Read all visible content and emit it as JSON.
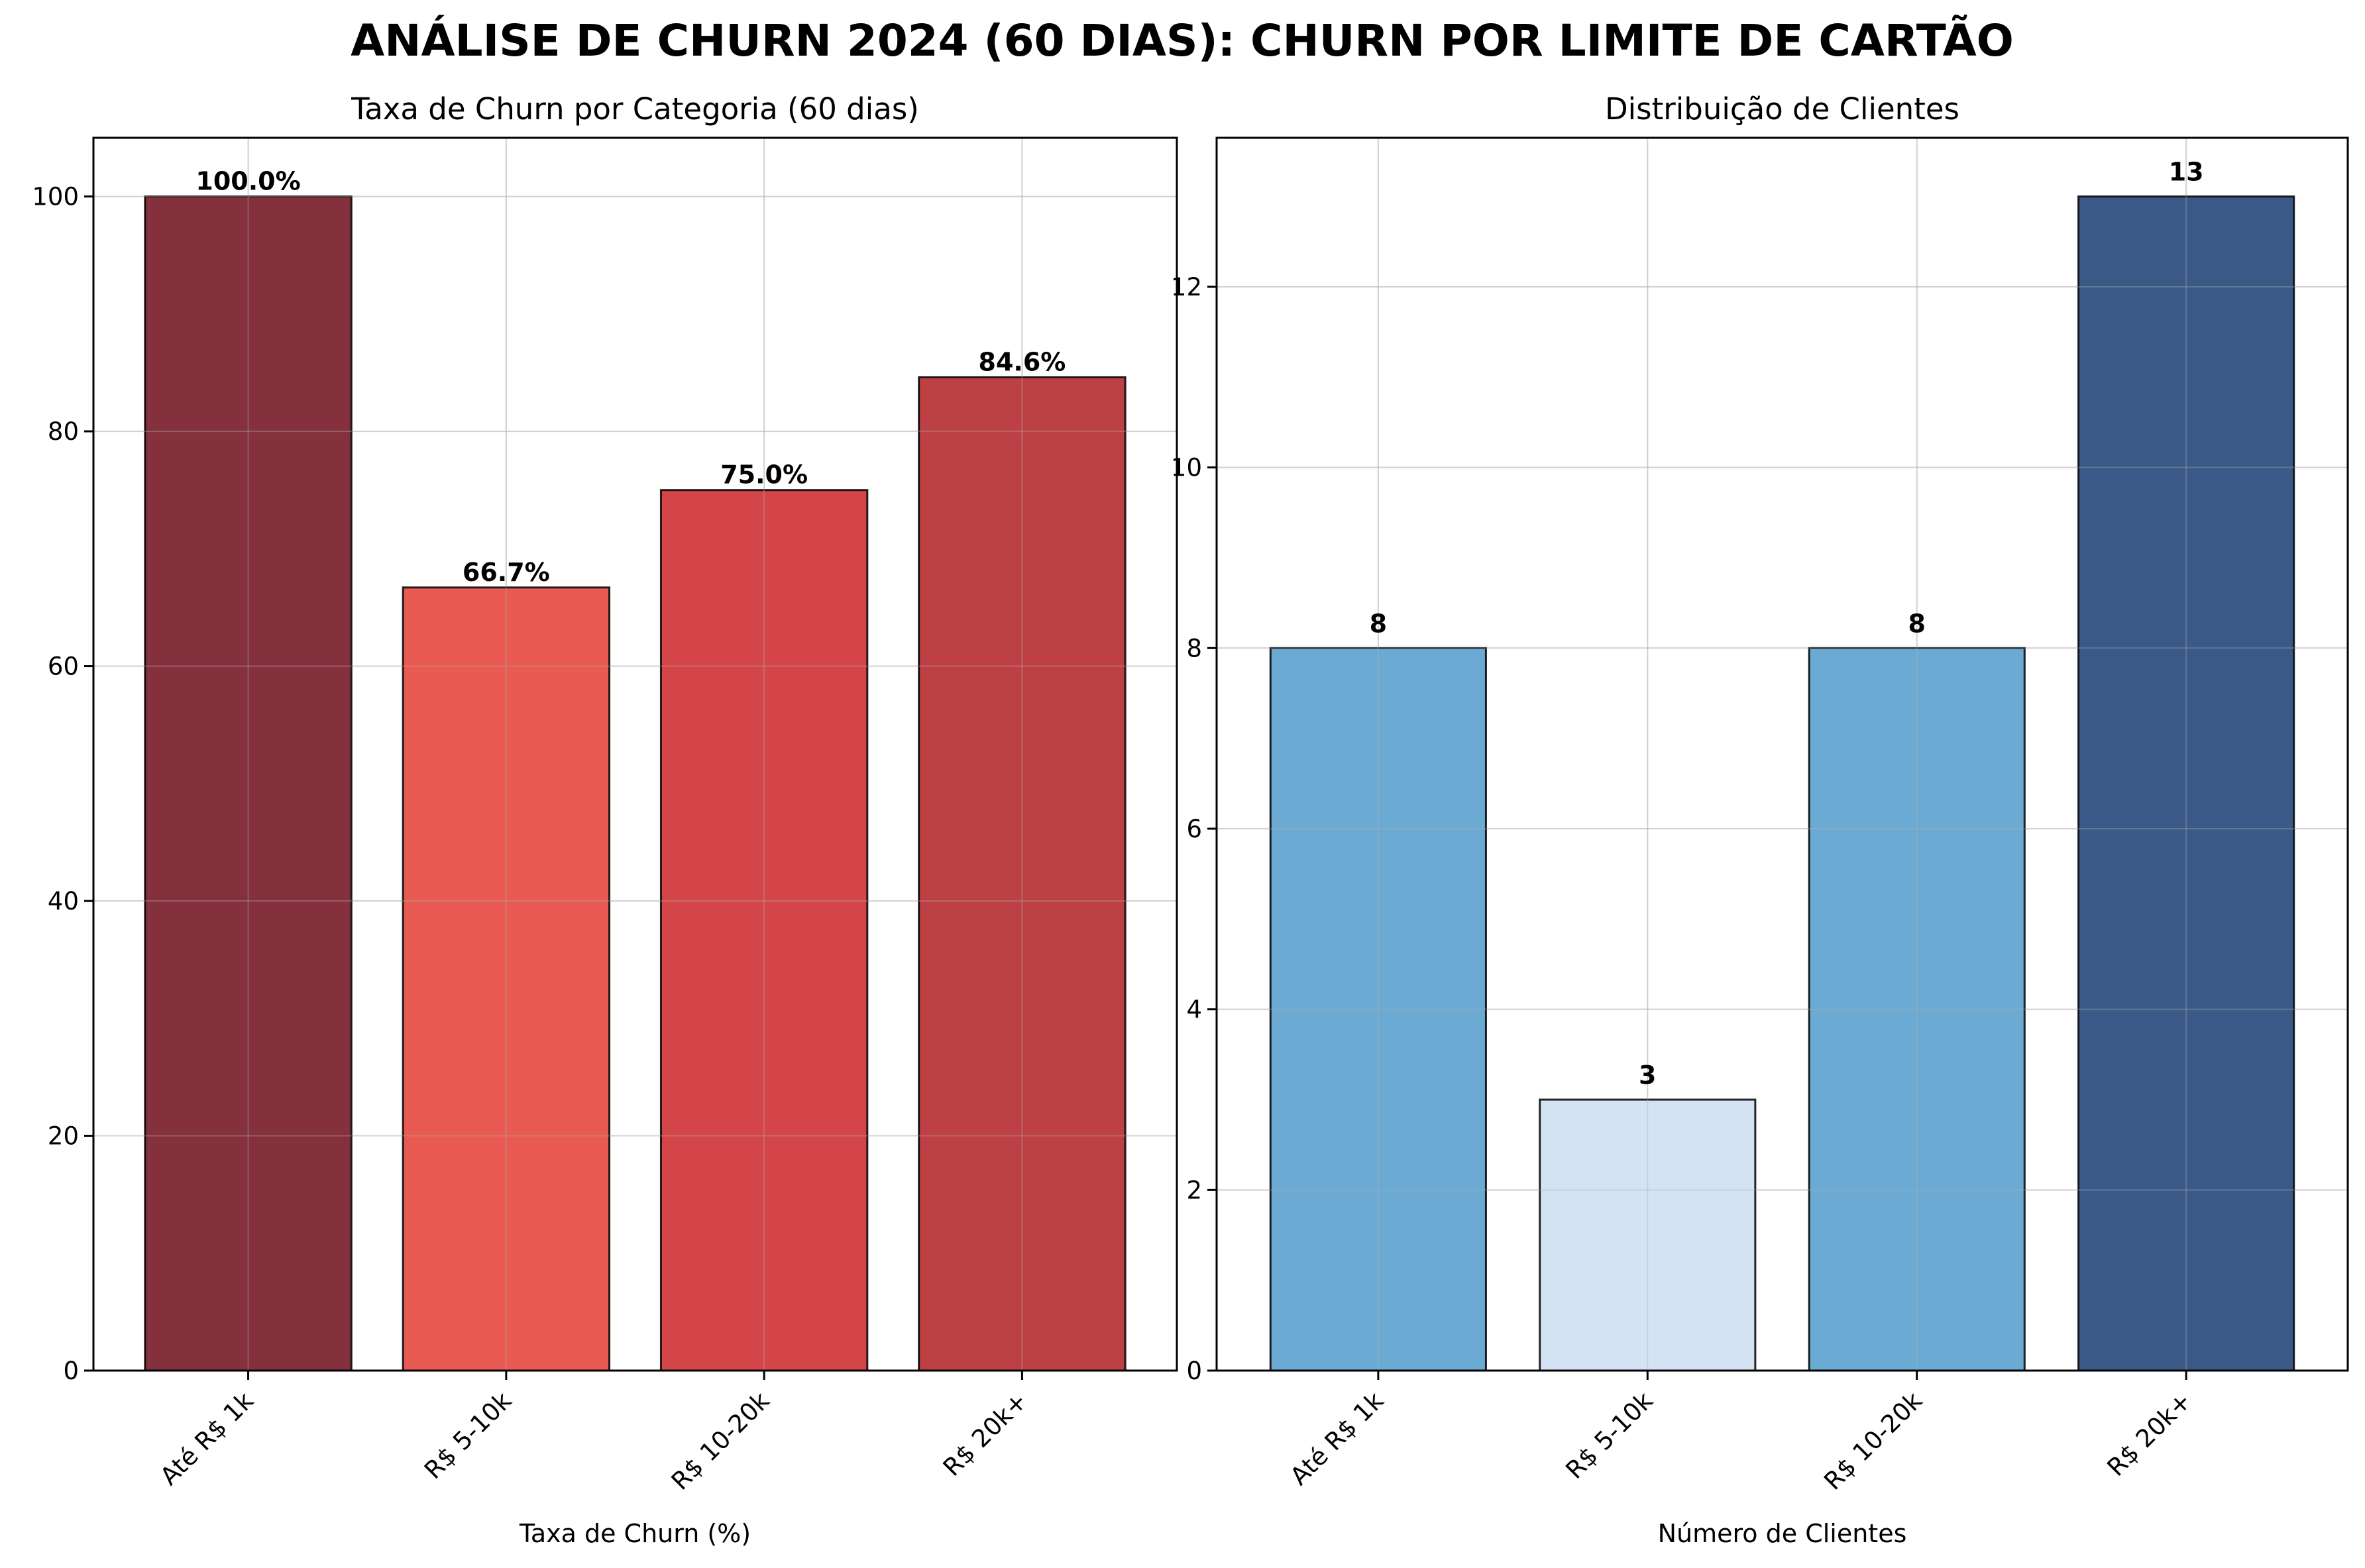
{
  "title": "ANÁLISE DE CHURN 2024 (60 DIAS): CHURN POR LIMITE DE CARTÃO",
  "chart_data": [
    {
      "type": "bar",
      "title": "Taxa de Churn por Categoria (60 dias)",
      "xlabel": "Taxa de Churn (%)",
      "ylabel": "",
      "categories": [
        "Até R$ 1k",
        "R$ 5-10k",
        "R$ 10-20k",
        "R$ 20k+"
      ],
      "values": [
        100.0,
        66.7,
        75.0,
        84.6
      ],
      "data_labels": [
        "100.0%",
        "66.7%",
        "75.0%",
        "84.6%"
      ],
      "colors": [
        "#85313d",
        "#e85a52",
        "#d4454a",
        "#bd4045"
      ],
      "ylim": [
        0,
        105
      ],
      "yticks": [
        0,
        20,
        40,
        60,
        80,
        100
      ],
      "grid": true
    },
    {
      "type": "bar",
      "title": "Distribuição de Clientes",
      "xlabel": "Número de Clientes",
      "ylabel": "",
      "categories": [
        "Até R$ 1k",
        "R$ 5-10k",
        "R$ 10-20k",
        "R$ 20k+"
      ],
      "values": [
        8,
        3,
        8,
        13
      ],
      "data_labels": [
        "8",
        "3",
        "8",
        "13"
      ],
      "colors": [
        "#6baad3",
        "#d4e3f3",
        "#6baad3",
        "#3a5986"
      ],
      "ylim": [
        0,
        13.65
      ],
      "yticks": [
        0,
        2,
        4,
        6,
        8,
        10,
        12
      ],
      "grid": true
    }
  ]
}
